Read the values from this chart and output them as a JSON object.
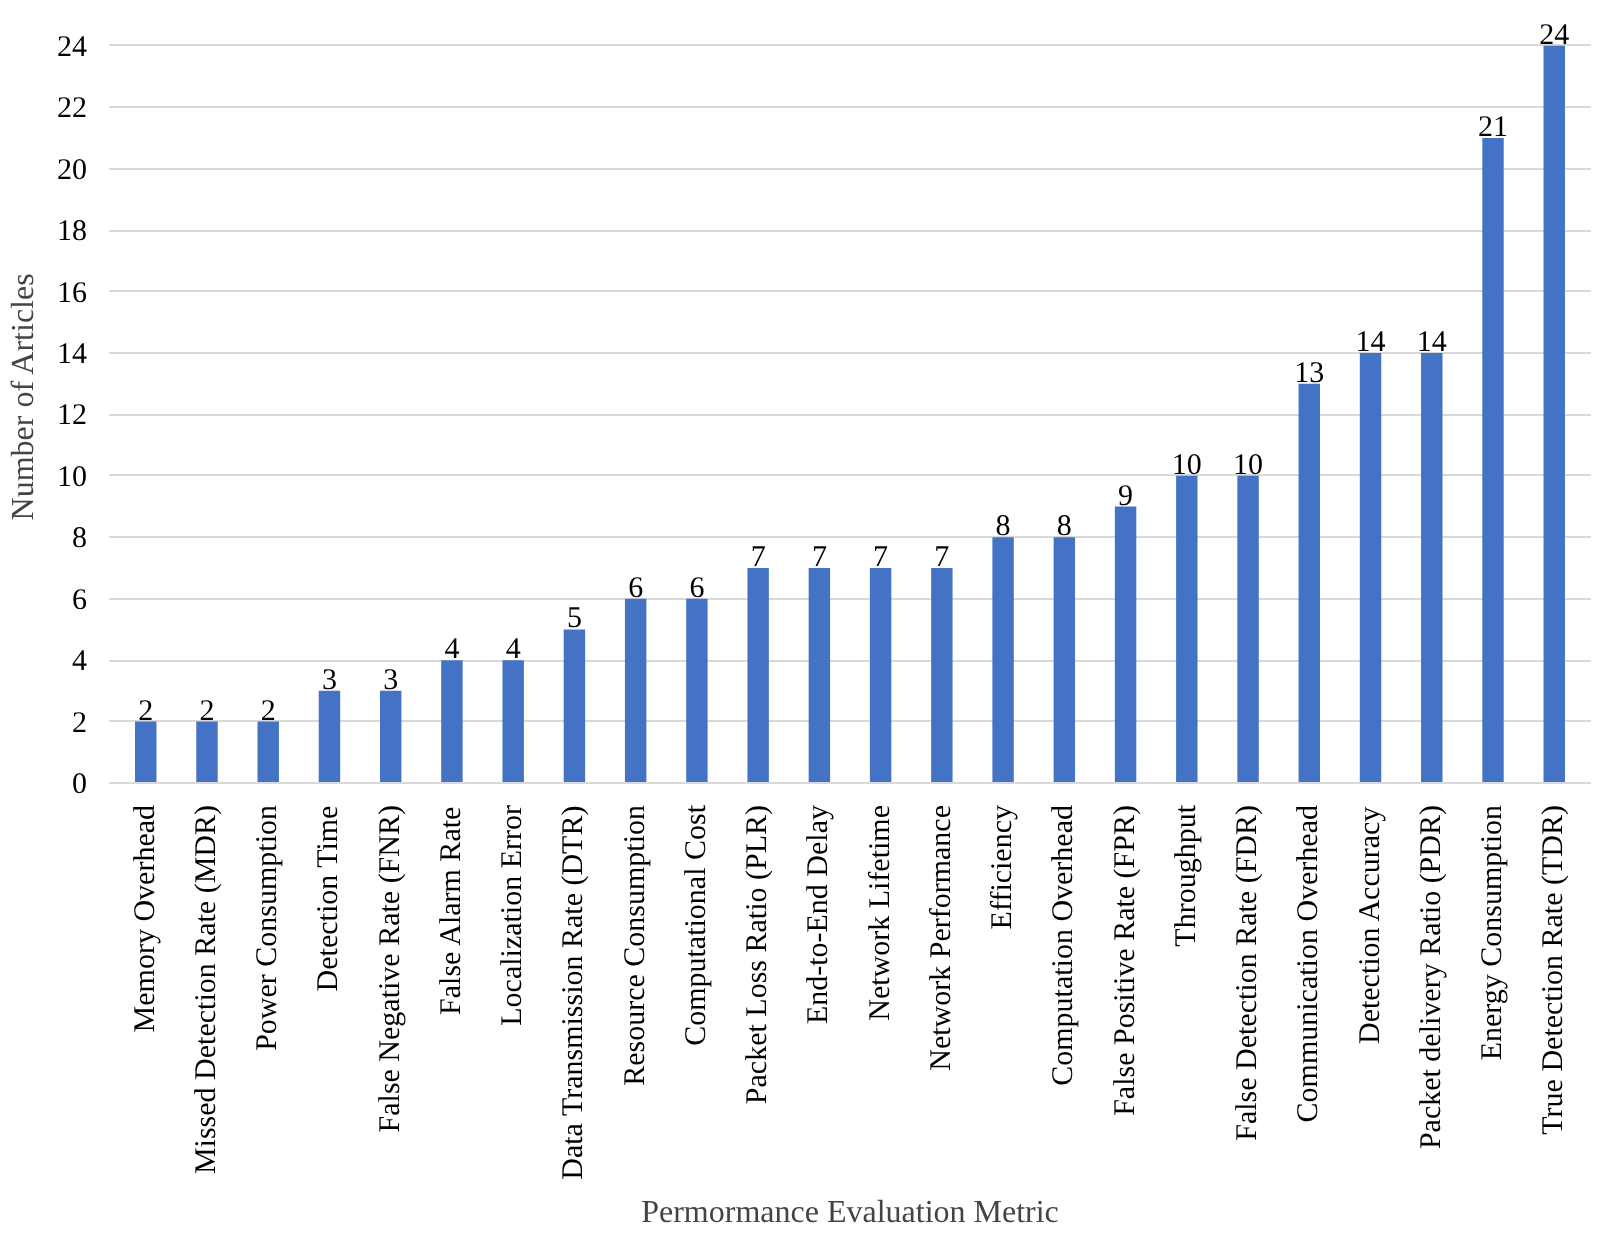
{
  "chart_data": {
    "type": "bar",
    "xlabel": "Permormance Evaluation Metric",
    "ylabel": "Number of Articles",
    "categories": [
      "Memory Overhead",
      "Missed Detection Rate (MDR)",
      "Power Consumption",
      "Detection Time",
      "False Negative Rate (FNR)",
      "False Alarm Rate",
      "Localization Error",
      "Data Transmission Rate (DTR)",
      "Resource Consumption",
      "Computational Cost",
      "Packet Loss Ratio (PLR)",
      "End-to-End Delay",
      "Network Lifetime",
      "Network Performance",
      "Efficiency",
      "Computation Overhead",
      "False Positive Rate (FPR)",
      "Throughput",
      "False Detection Rate (FDR)",
      "Communication Overhead",
      "Detection Accuracy",
      "Packet delivery Ratio (PDR)",
      "Energy Consumption",
      "True Detection Rate (TDR)"
    ],
    "values": [
      2,
      2,
      2,
      3,
      3,
      4,
      4,
      5,
      6,
      6,
      7,
      7,
      7,
      7,
      8,
      8,
      9,
      10,
      10,
      13,
      14,
      14,
      21,
      24
    ],
    "color": "#4472c4",
    "ylim": [
      0,
      24
    ],
    "yticks": [
      0,
      2,
      4,
      6,
      8,
      10,
      12,
      14,
      16,
      18,
      20,
      22,
      24
    ],
    "grid": "y",
    "data_labels": true
  }
}
